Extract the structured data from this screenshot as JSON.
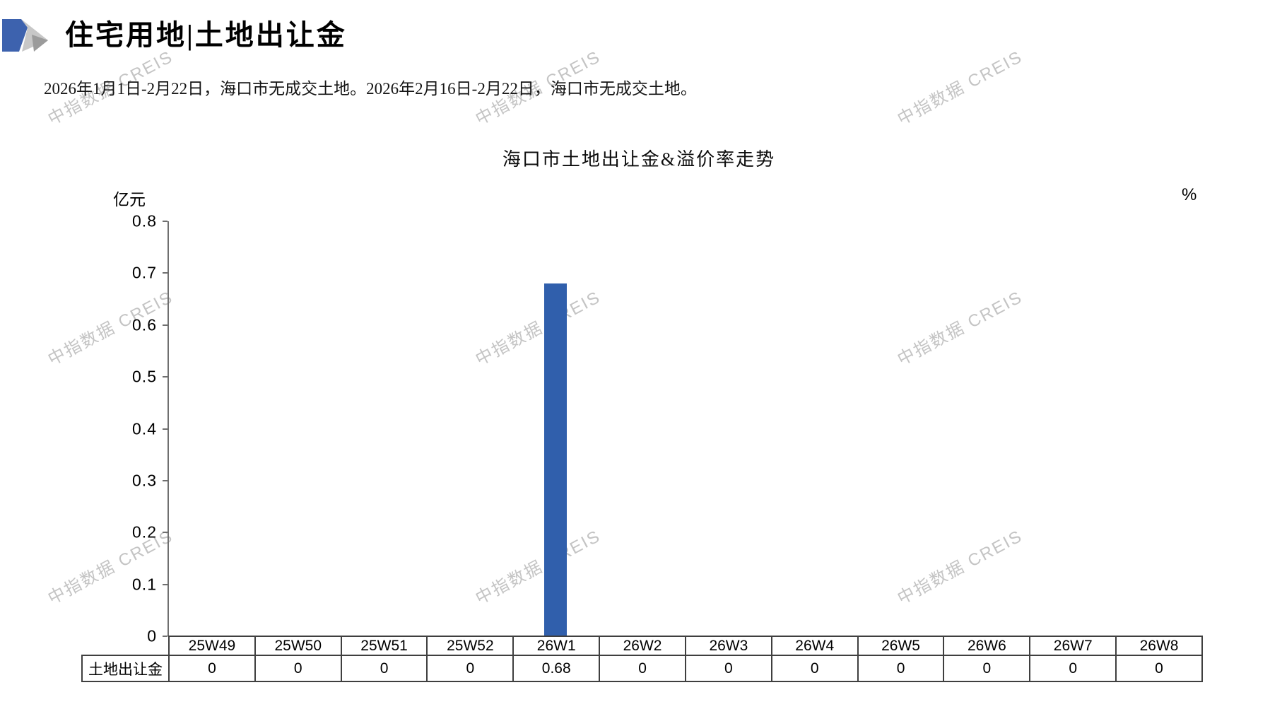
{
  "page": {
    "background": "#ffffff"
  },
  "header": {
    "title": "住宅用地|土地出让金"
  },
  "logo": {
    "blue": "#3D62AE",
    "gray_light": "#C7C7C7",
    "gray_mid": "#9B9B9B"
  },
  "description": {
    "text": "2026年1月1日-2月22日，海口市无成交土地。2026年2月16日-2月22日，海口市无成交土地。"
  },
  "watermark": {
    "text": "中指数据 CREIS",
    "color": "#c4c4c4"
  },
  "chart_data": {
    "type": "bar",
    "title": "海口市土地出让金&溢价率走势",
    "left_axis_label": "亿元",
    "right_axis_label": "%",
    "categories": [
      "25W49",
      "25W50",
      "25W51",
      "25W52",
      "26W1",
      "26W2",
      "26W3",
      "26W4",
      "26W5",
      "26W6",
      "26W7",
      "26W8"
    ],
    "series": [
      {
        "name": "土地出让金",
        "values": [
          0,
          0,
          0,
          0,
          0.68,
          0,
          0,
          0,
          0,
          0,
          0,
          0
        ]
      }
    ],
    "ylim": [
      0,
      0.8
    ],
    "ytick_step": 0.1,
    "grid": "off",
    "legend_position": "none",
    "bar_color": "#305FAC"
  }
}
